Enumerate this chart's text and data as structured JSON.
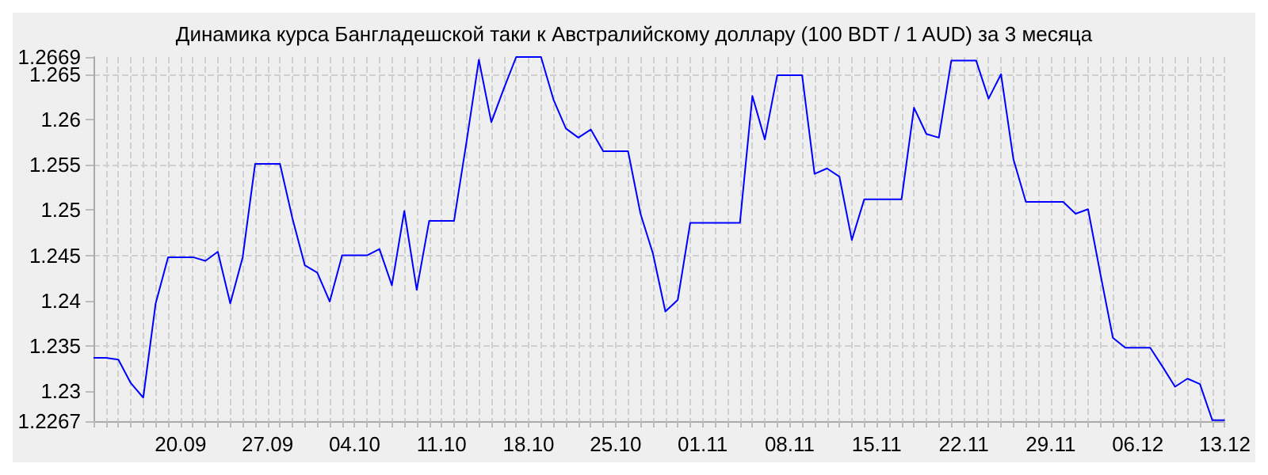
{
  "chart_data": {
    "type": "line",
    "title": "Динамика курса Бангладешской таки к Австралийскому доллару (100 BDT / 1 AUD) за 3 месяца",
    "categories": [
      null,
      null,
      null,
      null,
      null,
      null,
      null,
      "20.09",
      null,
      null,
      null,
      null,
      null,
      null,
      "27.09",
      null,
      null,
      null,
      null,
      null,
      null,
      "04.10",
      null,
      null,
      null,
      null,
      null,
      null,
      "11.10",
      null,
      null,
      null,
      null,
      null,
      null,
      "18.10",
      null,
      null,
      null,
      null,
      null,
      null,
      "25.10",
      null,
      null,
      null,
      null,
      null,
      null,
      "01.11",
      null,
      null,
      null,
      null,
      null,
      null,
      "08.11",
      null,
      null,
      null,
      null,
      null,
      null,
      "15.11",
      null,
      null,
      null,
      null,
      null,
      null,
      "22.11",
      null,
      null,
      null,
      null,
      null,
      null,
      "29.11",
      null,
      null,
      null,
      null,
      null,
      null,
      "06.12",
      null,
      null,
      null,
      null,
      null,
      null,
      "13.12"
    ],
    "series": [
      {
        "color": "#0000ff",
        "values": [
          1.2337,
          1.2337,
          1.2335,
          1.2309,
          1.2293,
          1.2397,
          1.2448,
          1.2448,
          1.2448,
          1.2444,
          1.2454,
          1.2397,
          1.2448,
          1.2551,
          1.2551,
          1.2551,
          1.2491,
          1.2439,
          1.2431,
          1.2399,
          1.245,
          1.245,
          1.245,
          1.2457,
          1.2417,
          1.2499,
          1.2412,
          1.2488,
          1.2488,
          1.2488,
          1.2575,
          1.2666,
          1.2597,
          1.2634,
          1.2669,
          1.2669,
          1.2669,
          1.2622,
          1.259,
          1.258,
          1.2589,
          1.2565,
          1.2565,
          1.2565,
          1.2496,
          1.2452,
          1.2388,
          1.2401,
          1.2486,
          1.2486,
          1.2486,
          1.2486,
          1.2486,
          1.2626,
          1.2578,
          1.2649,
          1.2649,
          1.2649,
          1.254,
          1.2546,
          1.2537,
          1.2467,
          1.2512,
          1.2512,
          1.2512,
          1.2512,
          1.2613,
          1.2584,
          1.258,
          1.2665,
          1.2665,
          1.2665,
          1.2623,
          1.265,
          1.2556,
          1.2509,
          1.2509,
          1.2509,
          1.2509,
          1.2496,
          1.2501,
          1.2429,
          1.2359,
          1.2348,
          1.2348,
          1.2348,
          1.2327,
          1.2305,
          1.2314,
          1.2308,
          1.2268,
          1.2268
        ]
      }
    ],
    "ylim": [
      1.2267,
      1.2669
    ],
    "yticks": [
      1.2267,
      1.23,
      1.235,
      1.24,
      1.245,
      1.25,
      1.255,
      1.26,
      1.265,
      1.2669
    ],
    "grid": true
  }
}
